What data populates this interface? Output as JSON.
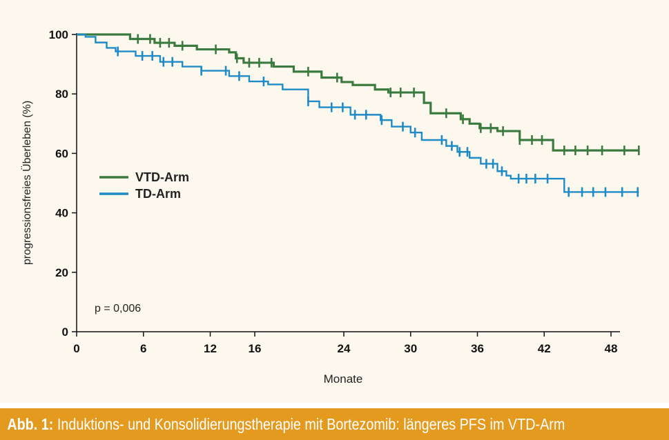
{
  "caption": {
    "label": "Abb. 1:",
    "text": "Induktions- und Konsolidierungstherapie mit Bortezomib: längeres PFS im VTD-Arm"
  },
  "chart_data": {
    "type": "line",
    "subtype": "kaplan-meier step curve with censor marks",
    "title": "",
    "xlabel": "Monate",
    "ylabel": "progressionsfreies Überleben (%)",
    "xlim": [
      0,
      49
    ],
    "ylim": [
      0,
      100
    ],
    "xticks": [
      0,
      6,
      12,
      16,
      24,
      30,
      36,
      42,
      48
    ],
    "yticks": [
      0,
      20,
      40,
      60,
      80,
      100
    ],
    "grid": false,
    "legend_position": "center-left",
    "annotation": "p = 0,006",
    "series": [
      {
        "name": "VTD-Arm",
        "color": "#3b7a3e",
        "steps": [
          [
            0,
            100
          ],
          [
            4.8,
            98.5
          ],
          [
            7,
            97.2
          ],
          [
            8.8,
            96.2
          ],
          [
            10.8,
            95
          ],
          [
            13.7,
            94
          ],
          [
            14.3,
            92
          ],
          [
            15,
            90.5
          ],
          [
            17.7,
            89.2
          ],
          [
            19.5,
            87.5
          ],
          [
            22,
            85.5
          ],
          [
            23.8,
            84
          ],
          [
            24.8,
            83
          ],
          [
            26.8,
            81.5
          ],
          [
            28,
            80.5
          ],
          [
            31.2,
            77
          ],
          [
            31.8,
            73.5
          ],
          [
            34.5,
            71.5
          ],
          [
            35.3,
            70
          ],
          [
            36.2,
            68.5
          ],
          [
            37.8,
            67.5
          ],
          [
            39.8,
            64.5
          ],
          [
            42.8,
            61
          ],
          [
            50.5,
            61
          ]
        ],
        "censor_x": [
          5.5,
          6.6,
          7.5,
          8.3,
          9.5,
          12.5,
          14.4,
          15.5,
          16.4,
          17.5,
          20.8,
          23.4,
          28.2,
          29.1,
          30.3,
          33.2,
          34.7,
          36.3,
          37.2,
          38.3,
          39.8,
          40.9,
          41.8,
          43.8,
          44.8,
          45.9,
          47.2,
          49.2,
          50.5
        ]
      },
      {
        "name": "TD-Arm",
        "color": "#1e8ac8",
        "steps": [
          [
            0,
            100
          ],
          [
            0.8,
            99.2
          ],
          [
            1.7,
            97.3
          ],
          [
            2.7,
            95.5
          ],
          [
            3.5,
            94.3
          ],
          [
            5.3,
            92.8
          ],
          [
            7.5,
            90.8
          ],
          [
            9.5,
            89.2
          ],
          [
            11.2,
            87.8
          ],
          [
            13.7,
            86
          ],
          [
            15.5,
            84.2
          ],
          [
            17.2,
            83.2
          ],
          [
            18.5,
            81.5
          ],
          [
            20.8,
            77.5
          ],
          [
            21.8,
            75.5
          ],
          [
            24.6,
            73
          ],
          [
            27.3,
            71.2
          ],
          [
            28.3,
            69
          ],
          [
            30,
            67
          ],
          [
            31,
            64.5
          ],
          [
            33.2,
            62.5
          ],
          [
            34.2,
            60.5
          ],
          [
            35.3,
            58.5
          ],
          [
            36.3,
            56.5
          ],
          [
            37.8,
            54
          ],
          [
            38.6,
            52.5
          ],
          [
            39,
            51.5
          ],
          [
            43.8,
            47
          ],
          [
            50.5,
            47
          ]
        ],
        "censor_x": [
          3.7,
          5.9,
          6.8,
          7.8,
          8.6,
          11.2,
          13.4,
          14.6,
          16.8,
          20.8,
          22.9,
          23.9,
          25,
          26,
          27.4,
          29.3,
          30.4,
          32.8,
          33.7,
          34.4,
          35.1,
          36.8,
          37.4,
          38.2,
          39.7,
          40.4,
          41.2,
          42.3,
          44.2,
          45.4,
          46.4,
          47.5,
          49,
          50.4
        ]
      }
    ]
  }
}
